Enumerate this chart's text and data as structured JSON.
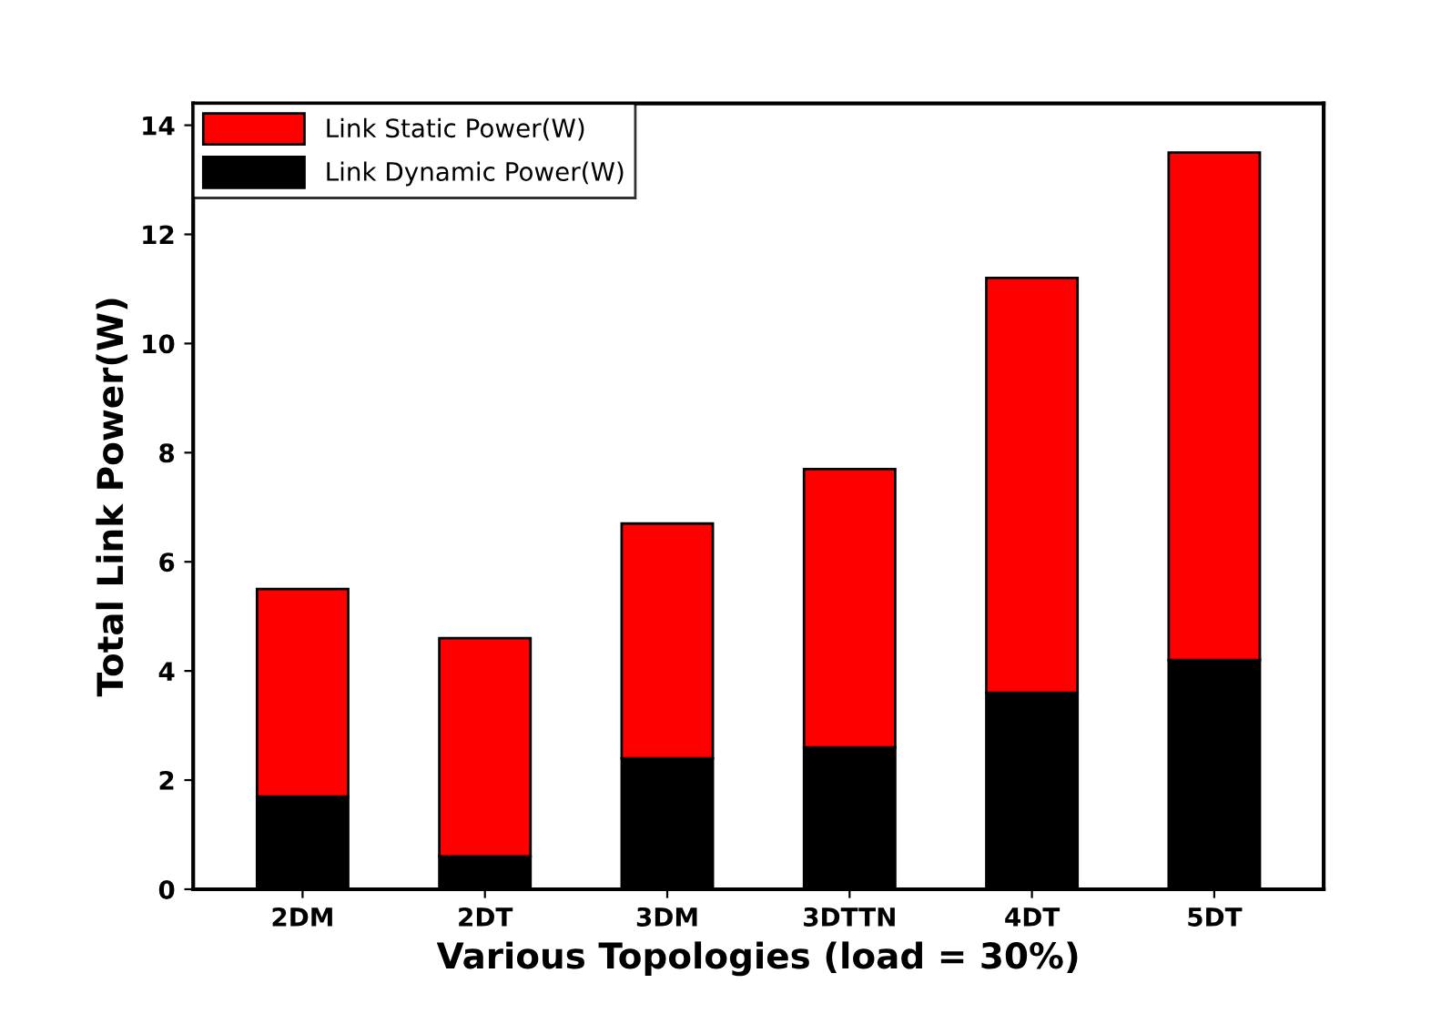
{
  "chart_data": {
    "type": "bar",
    "stacked": true,
    "xlabel": "Various Topologies (load = 30%)",
    "ylabel": "Total Link Power(W)",
    "categories": [
      "2DM",
      "2DT",
      "3DM",
      "3DTTN",
      "4DT",
      "5DT"
    ],
    "series": [
      {
        "name": "Link Dynamic Power(W)",
        "color": "#000000",
        "values": [
          1.7,
          0.6,
          2.4,
          2.6,
          3.6,
          4.2
        ]
      },
      {
        "name": "Link Static Power(W)",
        "color": "#ff0000",
        "values": [
          3.8,
          4.0,
          4.3,
          5.1,
          7.6,
          9.3
        ]
      }
    ],
    "ylim": [
      0,
      14.4
    ],
    "yticks": [
      0,
      2,
      4,
      6,
      8,
      10,
      12,
      14
    ],
    "grid": false,
    "legend": "top left"
  }
}
